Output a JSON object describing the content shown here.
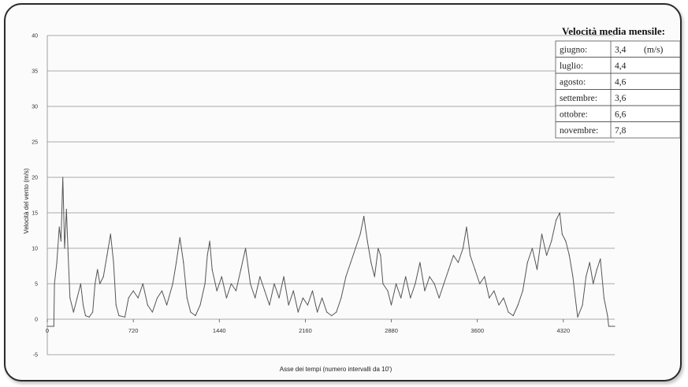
{
  "chart_data": {
    "type": "line",
    "xlabel": "Asse dei tempi (numero intervalli da 10')",
    "ylabel": "Velocità del vento (m/s)",
    "xlim": [
      0,
      4750
    ],
    "ylim": [
      -5,
      40
    ],
    "x_ticks": [
      0,
      720,
      1440,
      2160,
      2880,
      3600,
      4320
    ],
    "y_ticks": [
      -5,
      0,
      5,
      10,
      15,
      20,
      25,
      30,
      35,
      40
    ],
    "grid": true,
    "series": [
      {
        "color": "#555555",
        "points": [
          [
            0,
            -1
          ],
          [
            55,
            -1
          ],
          [
            60,
            5
          ],
          [
            80,
            8
          ],
          [
            100,
            13
          ],
          [
            115,
            11
          ],
          [
            130,
            20
          ],
          [
            145,
            10
          ],
          [
            160,
            15.5
          ],
          [
            175,
            9
          ],
          [
            190,
            3
          ],
          [
            220,
            1
          ],
          [
            250,
            3
          ],
          [
            280,
            5
          ],
          [
            300,
            2
          ],
          [
            320,
            0.5
          ],
          [
            350,
            0.3
          ],
          [
            380,
            1
          ],
          [
            400,
            5
          ],
          [
            420,
            7
          ],
          [
            440,
            5
          ],
          [
            470,
            6
          ],
          [
            500,
            9
          ],
          [
            530,
            12
          ],
          [
            555,
            8
          ],
          [
            575,
            2
          ],
          [
            600,
            0.5
          ],
          [
            650,
            0.3
          ],
          [
            680,
            3
          ],
          [
            720,
            4
          ],
          [
            760,
            3
          ],
          [
            800,
            5
          ],
          [
            840,
            2
          ],
          [
            880,
            1
          ],
          [
            920,
            3
          ],
          [
            960,
            4
          ],
          [
            1000,
            2
          ],
          [
            1050,
            5
          ],
          [
            1080,
            8
          ],
          [
            1110,
            11.5
          ],
          [
            1140,
            8
          ],
          [
            1170,
            3
          ],
          [
            1200,
            1
          ],
          [
            1240,
            0.5
          ],
          [
            1280,
            2
          ],
          [
            1320,
            5
          ],
          [
            1340,
            9
          ],
          [
            1360,
            11
          ],
          [
            1380,
            7
          ],
          [
            1420,
            4
          ],
          [
            1460,
            6
          ],
          [
            1500,
            3
          ],
          [
            1540,
            5
          ],
          [
            1580,
            4
          ],
          [
            1620,
            7
          ],
          [
            1660,
            10
          ],
          [
            1700,
            5
          ],
          [
            1740,
            3
          ],
          [
            1780,
            6
          ],
          [
            1820,
            4
          ],
          [
            1860,
            2
          ],
          [
            1900,
            5
          ],
          [
            1940,
            3
          ],
          [
            1980,
            6
          ],
          [
            2020,
            2
          ],
          [
            2060,
            4
          ],
          [
            2100,
            1
          ],
          [
            2140,
            3
          ],
          [
            2180,
            2
          ],
          [
            2220,
            4
          ],
          [
            2260,
            1
          ],
          [
            2300,
            3
          ],
          [
            2340,
            1
          ],
          [
            2380,
            0.5
          ],
          [
            2420,
            1
          ],
          [
            2460,
            3
          ],
          [
            2500,
            6
          ],
          [
            2540,
            8
          ],
          [
            2580,
            10
          ],
          [
            2620,
            12
          ],
          [
            2650,
            14.5
          ],
          [
            2680,
            11
          ],
          [
            2710,
            8
          ],
          [
            2740,
            6
          ],
          [
            2770,
            10
          ],
          [
            2790,
            9
          ],
          [
            2810,
            5
          ],
          [
            2850,
            4
          ],
          [
            2880,
            2
          ],
          [
            2920,
            5
          ],
          [
            2960,
            3
          ],
          [
            3000,
            6
          ],
          [
            3040,
            3
          ],
          [
            3080,
            5
          ],
          [
            3120,
            8
          ],
          [
            3160,
            4
          ],
          [
            3200,
            6
          ],
          [
            3240,
            5
          ],
          [
            3280,
            3
          ],
          [
            3320,
            5
          ],
          [
            3360,
            7
          ],
          [
            3400,
            9
          ],
          [
            3440,
            8
          ],
          [
            3480,
            10
          ],
          [
            3510,
            13
          ],
          [
            3540,
            9
          ],
          [
            3580,
            7
          ],
          [
            3620,
            5
          ],
          [
            3660,
            6
          ],
          [
            3700,
            3
          ],
          [
            3740,
            4
          ],
          [
            3780,
            2
          ],
          [
            3820,
            3
          ],
          [
            3860,
            1
          ],
          [
            3900,
            0.5
          ],
          [
            3940,
            2
          ],
          [
            3980,
            4
          ],
          [
            4020,
            8
          ],
          [
            4060,
            10
          ],
          [
            4100,
            7
          ],
          [
            4140,
            12
          ],
          [
            4180,
            9
          ],
          [
            4220,
            11
          ],
          [
            4260,
            14
          ],
          [
            4290,
            15
          ],
          [
            4310,
            12
          ],
          [
            4340,
            11
          ],
          [
            4370,
            9
          ],
          [
            4400,
            6
          ],
          [
            4420,
            3
          ],
          [
            4440,
            0.3
          ],
          [
            4480,
            2
          ],
          [
            4510,
            6
          ],
          [
            4540,
            8
          ],
          [
            4570,
            5
          ],
          [
            4600,
            7
          ],
          [
            4630,
            8.5
          ],
          [
            4660,
            3
          ],
          [
            4690,
            0.5
          ],
          [
            4700,
            -1
          ],
          [
            4750,
            -1
          ]
        ]
      }
    ]
  },
  "table": {
    "title": "Velocità media mensile:",
    "unit": "(m/s)",
    "rows": [
      {
        "month": "giugno:",
        "value": "3,4"
      },
      {
        "month": "luglio:",
        "value": "4,4"
      },
      {
        "month": "agosto:",
        "value": "4,6"
      },
      {
        "month": "settembre:",
        "value": "3,6"
      },
      {
        "month": "ottobre:",
        "value": "6,6"
      },
      {
        "month": "novembre:",
        "value": "7,8"
      }
    ]
  },
  "colors": {
    "frame": "#2a2a2a",
    "grid": "#8c8c8c",
    "line": "#555555",
    "background": "#fbfbfb"
  }
}
